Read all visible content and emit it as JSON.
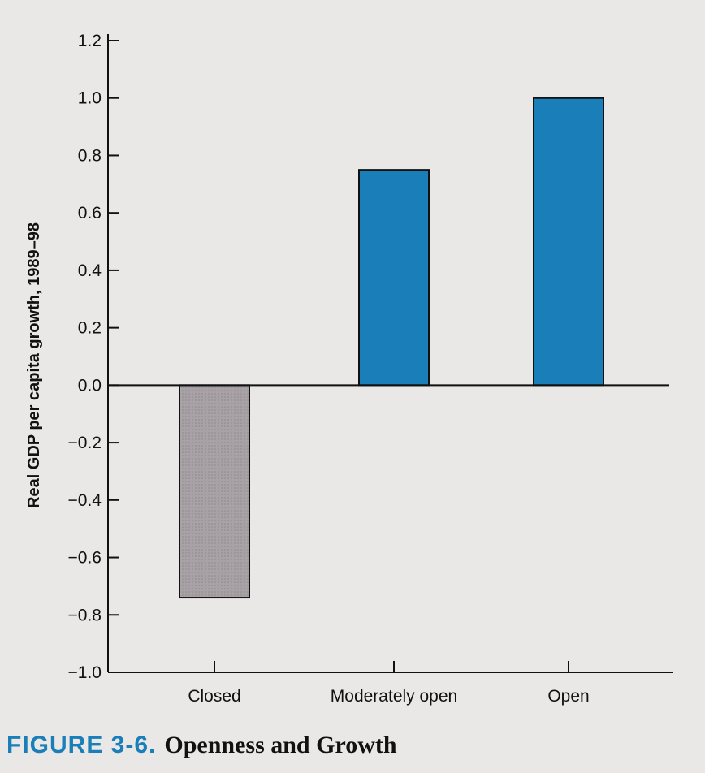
{
  "chart_data": {
    "type": "bar",
    "categories": [
      "Closed",
      "Moderately open",
      "Open"
    ],
    "values": [
      -0.74,
      0.75,
      1.0
    ],
    "ylabel": "Real GDP per capita growth, 1989–98",
    "xlabel": "",
    "ylim": [
      -1.0,
      1.2
    ],
    "yticks": [
      "1.2",
      "1.0",
      "0.8",
      "0.6",
      "0.4",
      "0.2",
      "0.0",
      "−0.2",
      "−0.4",
      "−0.6",
      "−0.8",
      "−1.0"
    ],
    "grid": false,
    "bar_colors": [
      "#a8a2a6",
      "#1a7fb8",
      "#1a7fb8"
    ]
  },
  "figure": {
    "label": "FIGURE 3-6.",
    "title": "Openness and Growth"
  }
}
